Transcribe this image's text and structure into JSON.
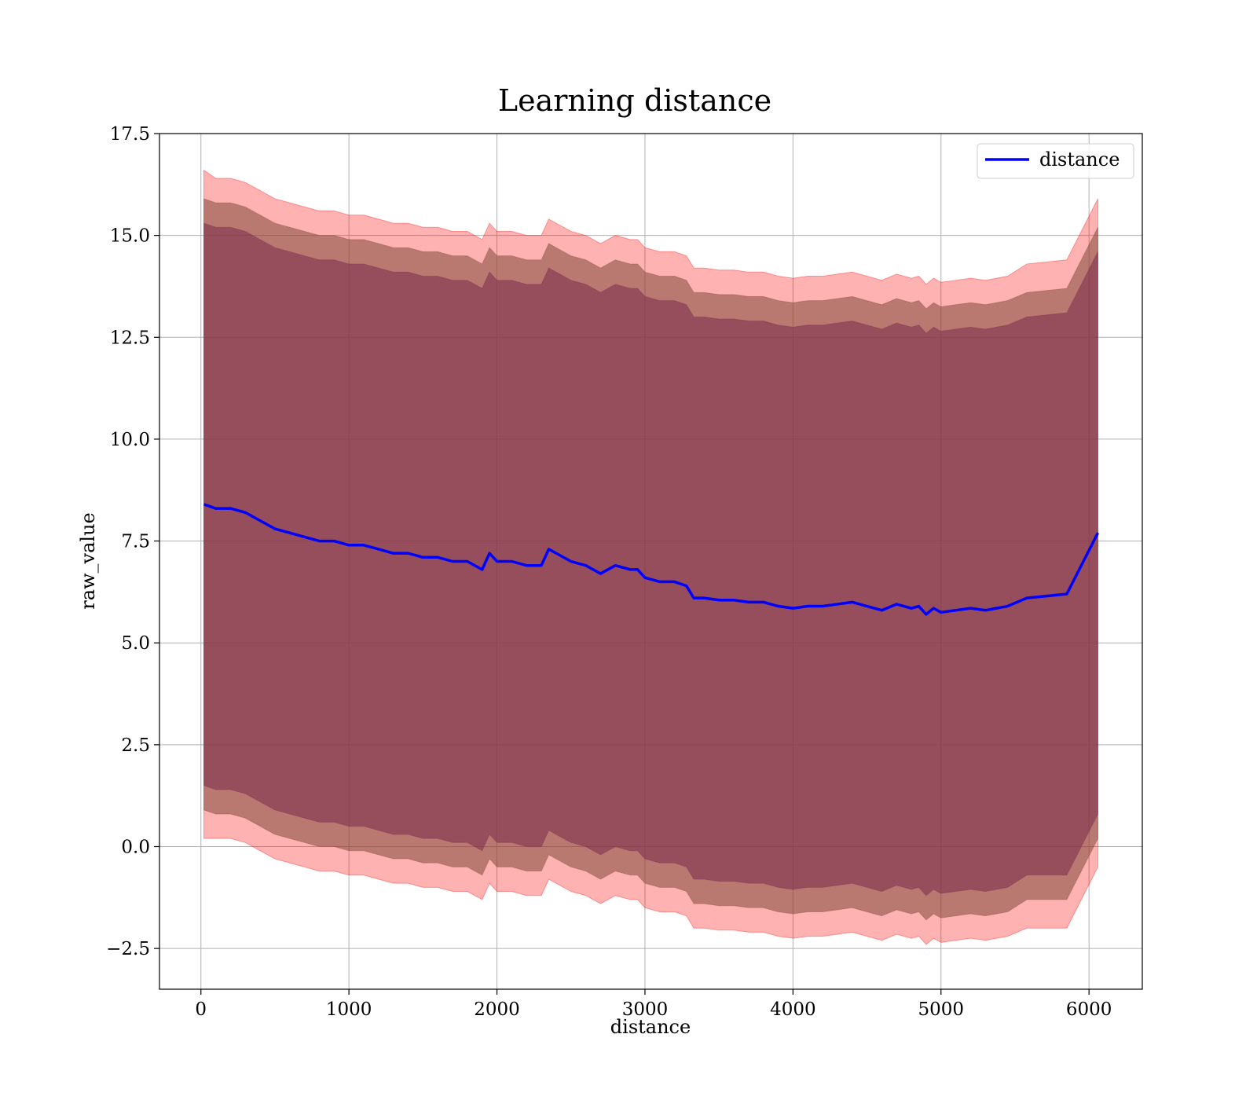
{
  "chart_data": {
    "type": "line",
    "title": "Learning distance",
    "xlabel": "distance",
    "ylabel": "raw_value",
    "xlim": [
      -280,
      6360
    ],
    "ylim": [
      -3.5,
      17.5
    ],
    "grid": true,
    "legend_position": "top-right",
    "x_ticks": [
      {
        "value": 0,
        "label": "0"
      },
      {
        "value": 1000,
        "label": "1000"
      },
      {
        "value": 2000,
        "label": "2000"
      },
      {
        "value": 3000,
        "label": "3000"
      },
      {
        "value": 4000,
        "label": "4000"
      },
      {
        "value": 5000,
        "label": "5000"
      },
      {
        "value": 6000,
        "label": "6000"
      }
    ],
    "y_ticks": [
      {
        "value": -2.5,
        "label": "−2.5"
      },
      {
        "value": 0.0,
        "label": "0.0"
      },
      {
        "value": 2.5,
        "label": "2.5"
      },
      {
        "value": 5.0,
        "label": "5.0"
      },
      {
        "value": 7.5,
        "label": "7.5"
      },
      {
        "value": 10.0,
        "label": "10.0"
      },
      {
        "value": 12.5,
        "label": "12.5"
      },
      {
        "value": 15.0,
        "label": "15.0"
      },
      {
        "value": 17.5,
        "label": "17.5"
      }
    ],
    "series": [
      {
        "name": "distance",
        "color": "#0000ff",
        "x": [
          20,
          100,
          200,
          300,
          400,
          500,
          600,
          700,
          800,
          900,
          1000,
          1100,
          1200,
          1300,
          1400,
          1500,
          1600,
          1700,
          1800,
          1900,
          1950,
          2000,
          2100,
          2200,
          2300,
          2350,
          2400,
          2500,
          2600,
          2650,
          2700,
          2800,
          2900,
          2950,
          3000,
          3100,
          3200,
          3280,
          3330,
          3400,
          3500,
          3600,
          3700,
          3800,
          3900,
          4000,
          4100,
          4200,
          4300,
          4400,
          4500,
          4600,
          4700,
          4800,
          4850,
          4900,
          4950,
          5000,
          5100,
          5200,
          5300,
          5450,
          5580,
          5850,
          6060
        ],
        "values": [
          8.4,
          8.3,
          8.3,
          8.2,
          8.0,
          7.8,
          7.7,
          7.6,
          7.5,
          7.5,
          7.4,
          7.4,
          7.3,
          7.2,
          7.2,
          7.1,
          7.1,
          7.0,
          7.0,
          6.8,
          7.2,
          7.0,
          7.0,
          6.9,
          6.9,
          7.3,
          7.2,
          7.0,
          6.9,
          6.8,
          6.7,
          6.9,
          6.8,
          6.8,
          6.6,
          6.5,
          6.5,
          6.4,
          6.1,
          6.1,
          6.05,
          6.05,
          6.0,
          6.0,
          5.9,
          5.85,
          5.9,
          5.9,
          5.95,
          6.0,
          5.9,
          5.8,
          5.95,
          5.85,
          5.9,
          5.7,
          5.85,
          5.75,
          5.8,
          5.85,
          5.8,
          5.9,
          6.1,
          6.2,
          7.7
        ]
      }
    ],
    "bands": [
      {
        "color": "#ff0000",
        "upper": [
          16.6,
          16.4,
          16.4,
          16.3,
          16.1,
          15.9,
          15.8,
          15.7,
          15.6,
          15.6,
          15.5,
          15.5,
          15.4,
          15.3,
          15.3,
          15.2,
          15.2,
          15.1,
          15.1,
          14.9,
          15.3,
          15.1,
          15.1,
          15.0,
          15.0,
          15.4,
          15.3,
          15.1,
          15.0,
          14.9,
          14.8,
          15.0,
          14.9,
          14.9,
          14.7,
          14.6,
          14.6,
          14.5,
          14.2,
          14.2,
          14.15,
          14.15,
          14.1,
          14.1,
          14.0,
          13.95,
          14.0,
          14.0,
          14.05,
          14.1,
          14.0,
          13.9,
          14.05,
          13.95,
          14.0,
          13.8,
          13.95,
          13.85,
          13.9,
          13.95,
          13.9,
          14.0,
          14.3,
          14.4,
          15.9
        ],
        "lower": [
          0.2,
          0.2,
          0.2,
          0.1,
          -0.1,
          -0.3,
          -0.4,
          -0.5,
          -0.6,
          -0.6,
          -0.7,
          -0.7,
          -0.8,
          -0.9,
          -0.9,
          -1.0,
          -1.0,
          -1.1,
          -1.1,
          -1.3,
          -0.9,
          -1.1,
          -1.1,
          -1.2,
          -1.2,
          -0.8,
          -0.9,
          -1.1,
          -1.2,
          -1.3,
          -1.4,
          -1.2,
          -1.3,
          -1.3,
          -1.5,
          -1.6,
          -1.6,
          -1.7,
          -2.0,
          -2.0,
          -2.05,
          -2.05,
          -2.1,
          -2.1,
          -2.2,
          -2.25,
          -2.2,
          -2.2,
          -2.15,
          -2.1,
          -2.2,
          -2.3,
          -2.15,
          -2.25,
          -2.2,
          -2.4,
          -2.25,
          -2.35,
          -2.3,
          -2.25,
          -2.3,
          -2.2,
          -2.0,
          -2.0,
          -0.5
        ]
      },
      {
        "color": "#7f4b3a",
        "upper": [
          15.9,
          15.8,
          15.8,
          15.7,
          15.5,
          15.3,
          15.2,
          15.1,
          15.0,
          15.0,
          14.9,
          14.9,
          14.8,
          14.7,
          14.7,
          14.6,
          14.6,
          14.5,
          14.5,
          14.3,
          14.7,
          14.5,
          14.5,
          14.4,
          14.4,
          14.8,
          14.7,
          14.5,
          14.4,
          14.3,
          14.2,
          14.4,
          14.3,
          14.3,
          14.1,
          14.0,
          14.0,
          13.9,
          13.6,
          13.6,
          13.55,
          13.55,
          13.5,
          13.5,
          13.4,
          13.35,
          13.4,
          13.4,
          13.45,
          13.5,
          13.4,
          13.3,
          13.45,
          13.35,
          13.4,
          13.2,
          13.35,
          13.25,
          13.3,
          13.35,
          13.3,
          13.4,
          13.6,
          13.7,
          15.2
        ],
        "lower": [
          0.9,
          0.8,
          0.8,
          0.7,
          0.5,
          0.3,
          0.2,
          0.1,
          0.0,
          0.0,
          -0.1,
          -0.1,
          -0.2,
          -0.3,
          -0.3,
          -0.4,
          -0.4,
          -0.5,
          -0.5,
          -0.7,
          -0.3,
          -0.5,
          -0.5,
          -0.6,
          -0.6,
          -0.2,
          -0.3,
          -0.5,
          -0.6,
          -0.7,
          -0.8,
          -0.6,
          -0.7,
          -0.7,
          -0.9,
          -1.0,
          -1.0,
          -1.1,
          -1.4,
          -1.4,
          -1.45,
          -1.45,
          -1.5,
          -1.5,
          -1.6,
          -1.65,
          -1.6,
          -1.6,
          -1.55,
          -1.5,
          -1.6,
          -1.7,
          -1.55,
          -1.65,
          -1.6,
          -1.8,
          -1.65,
          -1.75,
          -1.7,
          -1.65,
          -1.7,
          -1.6,
          -1.3,
          -1.3,
          0.2
        ]
      },
      {
        "color": "#7b2c4d",
        "upper": [
          15.3,
          15.2,
          15.2,
          15.1,
          14.9,
          14.7,
          14.6,
          14.5,
          14.4,
          14.4,
          14.3,
          14.3,
          14.2,
          14.1,
          14.1,
          14.0,
          14.0,
          13.9,
          13.9,
          13.7,
          14.1,
          13.9,
          13.9,
          13.8,
          13.8,
          14.2,
          14.1,
          13.9,
          13.8,
          13.7,
          13.6,
          13.8,
          13.7,
          13.7,
          13.5,
          13.4,
          13.4,
          13.3,
          13.0,
          13.0,
          12.95,
          12.95,
          12.9,
          12.9,
          12.8,
          12.75,
          12.8,
          12.8,
          12.85,
          12.9,
          12.8,
          12.7,
          12.85,
          12.75,
          12.8,
          12.6,
          12.75,
          12.65,
          12.7,
          12.75,
          12.7,
          12.8,
          13.0,
          13.1,
          14.6
        ],
        "lower": [
          1.5,
          1.4,
          1.4,
          1.3,
          1.1,
          0.9,
          0.8,
          0.7,
          0.6,
          0.6,
          0.5,
          0.5,
          0.4,
          0.3,
          0.3,
          0.2,
          0.2,
          0.1,
          0.1,
          -0.1,
          0.3,
          0.1,
          0.1,
          0.0,
          0.0,
          0.4,
          0.3,
          0.1,
          0.0,
          -0.1,
          -0.2,
          0.0,
          -0.1,
          -0.1,
          -0.3,
          -0.4,
          -0.4,
          -0.5,
          -0.8,
          -0.8,
          -0.85,
          -0.85,
          -0.9,
          -0.9,
          -1.0,
          -1.05,
          -1.0,
          -1.0,
          -0.95,
          -0.9,
          -1.0,
          -1.1,
          -0.95,
          -1.05,
          -1.0,
          -1.2,
          -1.05,
          -1.15,
          -1.1,
          -1.05,
          -1.1,
          -1.0,
          -0.7,
          -0.7,
          0.8
        ]
      }
    ]
  }
}
